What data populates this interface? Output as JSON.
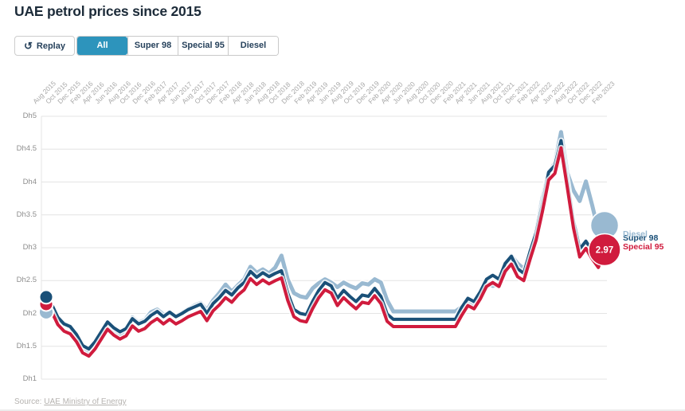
{
  "header": {
    "title": "UAE petrol prices since 2015"
  },
  "controls": {
    "replay_label": "Replay",
    "filters": [
      {
        "label": "All",
        "active": true
      },
      {
        "label": "Super 98",
        "active": false
      },
      {
        "label": "Special 95",
        "active": false
      },
      {
        "label": "Diesel",
        "active": false
      }
    ]
  },
  "source": {
    "prefix": "Source: ",
    "link_text": "UAE Ministry of Energy"
  },
  "chart_data": {
    "type": "line",
    "title": "UAE petrol prices since 2015",
    "x_start": "Aug 2015",
    "x_end": "Feb 2023",
    "x_step": "monthly",
    "x_tick_labels": [
      "Aug 2015",
      "Oct 2015",
      "Dec 2015",
      "Feb 2016",
      "Apr 2016",
      "Jun 2016",
      "Aug 2016",
      "Oct 2016",
      "Dec 2016",
      "Feb 2017",
      "Apr 2017",
      "Jun 2017",
      "Aug 2017",
      "Oct 2017",
      "Dec 2017",
      "Feb 2018",
      "Apr 2018",
      "Jun 2018",
      "Aug 2018",
      "Oct 2018",
      "Dec 2018",
      "Feb 2019",
      "Apr 2019",
      "Jun 2019",
      "Aug 2019",
      "Oct 2019",
      "Dec 2019",
      "Feb 2020",
      "Apr 2020",
      "Jun 2020",
      "Aug 2020",
      "Oct 2020",
      "Dec 2020",
      "Feb 2021",
      "Apr 2021",
      "Jun 2021",
      "Aug 2021",
      "Oct 2021",
      "Dec 2021",
      "Feb 2022",
      "Apr 2022",
      "Jun 2022",
      "Aug 2022",
      "Oct 2022",
      "Dec 2022",
      "Feb 2023"
    ],
    "ylabel_prefix": "Dh",
    "ylim": [
      1,
      5
    ],
    "y_tick_labels": [
      "Dh5",
      "Dh4.5",
      "Dh4",
      "Dh3.5",
      "Dh3",
      "Dh2.5",
      "Dh2",
      "Dh1.5",
      "Dh1"
    ],
    "y_tick_values": [
      5,
      4.5,
      4,
      3.5,
      3,
      2.5,
      2,
      1.5,
      1
    ],
    "grid": true,
    "legend_position": "end-of-line",
    "end_badge": {
      "series": "Special 95",
      "text": "2.97"
    },
    "series": [
      {
        "name": "Diesel",
        "color": "#99b9d1",
        "values": [
          2.02,
          1.97,
          1.9,
          1.85,
          1.8,
          1.63,
          1.48,
          1.42,
          1.52,
          1.63,
          1.84,
          1.74,
          1.68,
          1.74,
          1.94,
          1.86,
          1.9,
          2.02,
          2.06,
          1.98,
          2.0,
          1.96,
          2.01,
          2.07,
          2.12,
          2.16,
          2.05,
          2.2,
          2.31,
          2.44,
          2.33,
          2.43,
          2.52,
          2.71,
          2.62,
          2.67,
          2.61,
          2.7,
          2.88,
          2.52,
          2.31,
          2.26,
          2.24,
          2.38,
          2.46,
          2.52,
          2.47,
          2.4,
          2.47,
          2.42,
          2.38,
          2.46,
          2.44,
          2.52,
          2.47,
          2.2,
          2.03,
          2.03,
          2.03,
          2.03,
          2.03,
          2.03,
          2.03,
          2.03,
          2.03,
          2.03,
          2.03,
          2.1,
          2.16,
          2.12,
          2.29,
          2.46,
          2.42,
          2.44,
          2.63,
          2.88,
          2.76,
          2.68,
          2.88,
          3.25,
          3.76,
          4.14,
          4.29,
          4.76,
          4.14,
          3.87,
          3.71,
          4.01,
          3.65,
          3.26,
          3.34
        ]
      },
      {
        "name": "Super 98",
        "color": "#1a5078",
        "values": [
          2.25,
          2.14,
          1.94,
          1.84,
          1.8,
          1.68,
          1.51,
          1.46,
          1.57,
          1.72,
          1.87,
          1.78,
          1.72,
          1.77,
          1.92,
          1.84,
          1.88,
          1.97,
          2.03,
          1.95,
          2.02,
          1.95,
          2.0,
          2.06,
          2.1,
          2.14,
          2.0,
          2.15,
          2.24,
          2.35,
          2.28,
          2.39,
          2.47,
          2.64,
          2.55,
          2.62,
          2.56,
          2.61,
          2.65,
          2.31,
          2.06,
          2.0,
          1.98,
          2.18,
          2.35,
          2.47,
          2.42,
          2.23,
          2.35,
          2.26,
          2.18,
          2.28,
          2.26,
          2.38,
          2.26,
          1.99,
          1.91,
          1.91,
          1.91,
          1.91,
          1.91,
          1.91,
          1.91,
          1.91,
          1.91,
          1.91,
          1.91,
          2.09,
          2.23,
          2.18,
          2.33,
          2.52,
          2.58,
          2.52,
          2.76,
          2.87,
          2.68,
          2.61,
          2.94,
          3.23,
          3.66,
          4.15,
          4.25,
          4.63,
          4.03,
          3.41,
          2.98,
          3.1,
          2.95,
          2.82,
          3.09
        ]
      },
      {
        "name": "Special 95",
        "color": "#d01b3d",
        "values": [
          2.14,
          2.03,
          1.83,
          1.73,
          1.69,
          1.57,
          1.4,
          1.35,
          1.46,
          1.61,
          1.76,
          1.67,
          1.61,
          1.66,
          1.81,
          1.73,
          1.77,
          1.86,
          1.92,
          1.84,
          1.91,
          1.84,
          1.89,
          1.95,
          1.99,
          2.03,
          1.89,
          2.04,
          2.13,
          2.24,
          2.17,
          2.28,
          2.36,
          2.53,
          2.44,
          2.51,
          2.45,
          2.5,
          2.54,
          2.2,
          1.95,
          1.89,
          1.87,
          2.07,
          2.24,
          2.36,
          2.31,
          2.12,
          2.24,
          2.15,
          2.07,
          2.17,
          2.15,
          2.27,
          2.15,
          1.88,
          1.8,
          1.8,
          1.8,
          1.8,
          1.8,
          1.8,
          1.8,
          1.8,
          1.8,
          1.8,
          1.8,
          1.97,
          2.12,
          2.07,
          2.22,
          2.41,
          2.47,
          2.41,
          2.64,
          2.75,
          2.56,
          2.5,
          2.82,
          3.12,
          3.55,
          4.03,
          4.13,
          4.52,
          3.92,
          3.3,
          2.86,
          2.99,
          2.83,
          2.7,
          2.97
        ]
      }
    ]
  }
}
